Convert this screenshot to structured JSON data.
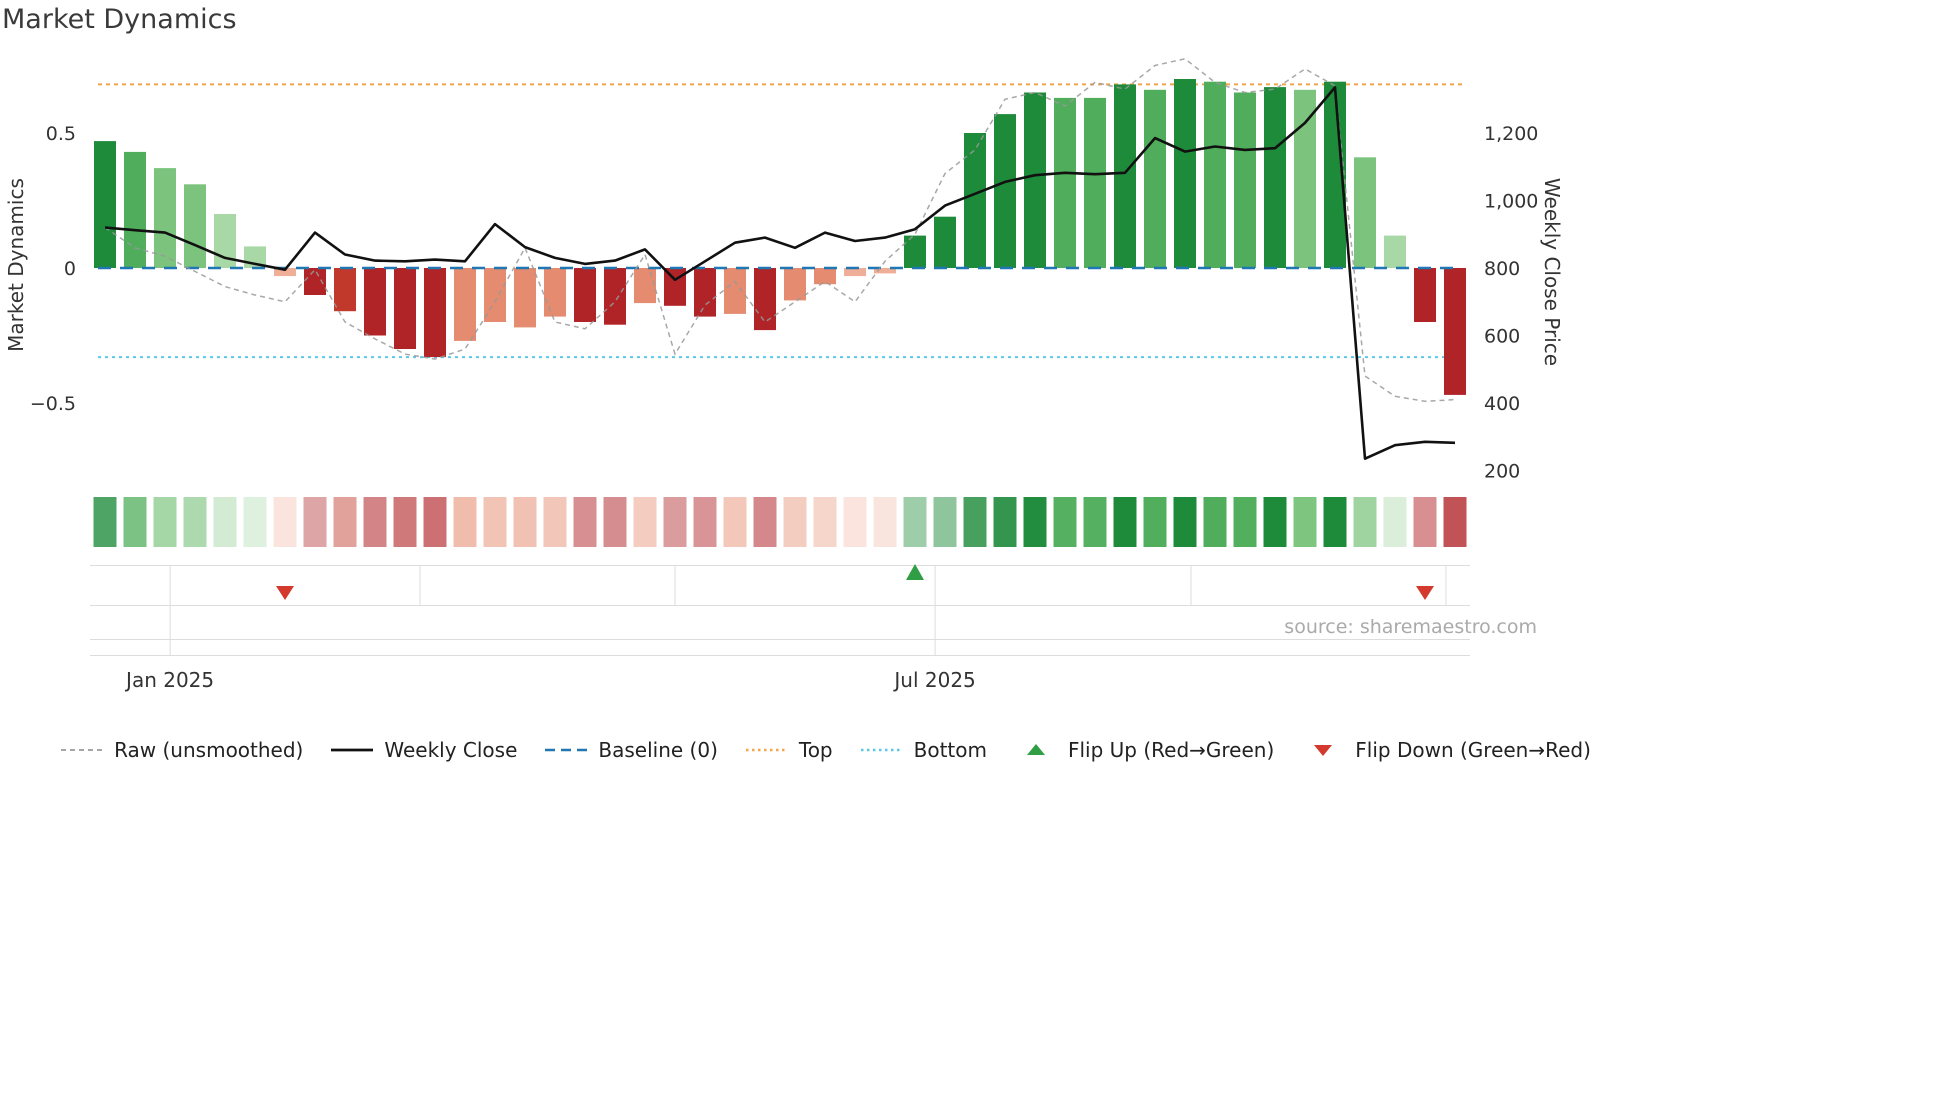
{
  "title": "Market Dynamics",
  "source": "source: sharemaestro.com",
  "axes": {
    "left_label": "Market Dynamics",
    "right_label": "Weekly Close Price",
    "left_ticks": [
      {
        "value": 0.5,
        "label": "0.5"
      },
      {
        "value": 0.0,
        "label": "0"
      },
      {
        "value": -0.5,
        "label": "−0.5"
      }
    ],
    "right_ticks": [
      {
        "value": 1200,
        "label": "1,200"
      },
      {
        "value": 1000,
        "label": "1,000"
      },
      {
        "value": 800,
        "label": "800"
      },
      {
        "value": 600,
        "label": "600"
      },
      {
        "value": 400,
        "label": "400"
      },
      {
        "value": 200,
        "label": "200"
      }
    ],
    "x_ticks": [
      {
        "label": "Jan 2025",
        "index": 2.17
      },
      {
        "label": "Jul 2025",
        "index": 27.67
      }
    ]
  },
  "colors": {
    "tones": {
      "g1": "#1e8b3b",
      "g2": "#4fad5b",
      "g3": "#7cc47e",
      "g4": "#a9d8a7",
      "r1": "#b02428",
      "r2": "#c0392b",
      "s1": "#e58b6f",
      "s2": "#efae97"
    },
    "line_black": "#111111",
    "raw_gray": "#999999",
    "baseline_blue": "#1f77b4",
    "top_orange": "#f2a54a",
    "bottom_cyan": "#5bc8e8",
    "flip_up": "#2f9e44",
    "flip_down": "#d3392d",
    "axis_text": "#333333",
    "band_line": "#dddddd"
  },
  "chart_data": {
    "type": "bar+line",
    "x_unit": "week",
    "title": "Market Dynamics",
    "left_ylabel": "Market Dynamics",
    "right_ylabel": "Weekly Close Price",
    "baseline": 0,
    "top": 0.68,
    "bottom": -0.33,
    "left_ylim": [
      -0.77,
      0.77
    ],
    "right_ylim": [
      184,
      1416
    ],
    "bars": {
      "values": [
        0.47,
        0.43,
        0.37,
        0.31,
        0.2,
        0.08,
        -0.03,
        -0.1,
        -0.16,
        -0.25,
        -0.3,
        -0.33,
        -0.27,
        -0.2,
        -0.22,
        -0.18,
        -0.2,
        -0.21,
        -0.13,
        -0.14,
        -0.18,
        -0.17,
        -0.23,
        -0.12,
        -0.06,
        -0.03,
        -0.02,
        0.12,
        0.19,
        0.5,
        0.57,
        0.65,
        0.63,
        0.63,
        0.68,
        0.66,
        0.7,
        0.69,
        0.65,
        0.67,
        0.66,
        0.69,
        0.41,
        0.12,
        -0.2,
        -0.47
      ],
      "tones": [
        "g1",
        "g2",
        "g3",
        "g3",
        "g4",
        "g4",
        "s2",
        "r1",
        "r2",
        "r1",
        "r1",
        "r1",
        "s1",
        "s1",
        "s1",
        "s1",
        "r1",
        "r1",
        "s1",
        "r1",
        "r1",
        "s1",
        "r1",
        "s1",
        "s1",
        "s2",
        "s2",
        "g1",
        "g1",
        "g1",
        "g1",
        "g1",
        "g2",
        "g2",
        "g1",
        "g2",
        "g1",
        "g2",
        "g2",
        "g1",
        "g3",
        "g1",
        "g3",
        "g4",
        "r1",
        "r1"
      ]
    },
    "weekly_close": [
      920,
      912,
      905,
      868,
      830,
      812,
      795,
      905,
      840,
      822,
      820,
      825,
      820,
      930,
      862,
      830,
      812,
      822,
      855,
      765,
      820,
      875,
      890,
      860,
      905,
      880,
      890,
      915,
      985,
      1020,
      1055,
      1075,
      1082,
      1078,
      1082,
      1185,
      1145,
      1160,
      1150,
      1155,
      1230,
      1335,
      235,
      275,
      285,
      282
    ],
    "raw": [
      920,
      860,
      835,
      790,
      745,
      720,
      700,
      795,
      640,
      590,
      545,
      530,
      560,
      700,
      860,
      640,
      620,
      700,
      840,
      545,
      690,
      760,
      640,
      700,
      760,
      700,
      820,
      900,
      1080,
      1150,
      1300,
      1320,
      1280,
      1350,
      1330,
      1400,
      1420,
      1350,
      1320,
      1330,
      1390,
      1340,
      480,
      420,
      405,
      410
    ],
    "flips": [
      {
        "index": 6,
        "type": "down"
      },
      {
        "index": 27,
        "type": "up"
      },
      {
        "index": 44,
        "type": "down"
      }
    ]
  },
  "legend": [
    {
      "label": "Raw (unsmoothed)",
      "type": "dash-gray"
    },
    {
      "label": "Weekly Close",
      "type": "line-black"
    },
    {
      "label": "Baseline (0)",
      "type": "dash-blue"
    },
    {
      "label": "Top",
      "type": "dot-orange"
    },
    {
      "label": "Bottom",
      "type": "dot-cyan"
    },
    {
      "label": "Flip Up (Red→Green)",
      "type": "tri-up"
    },
    {
      "label": "Flip Down (Green→Red)",
      "type": "tri-down"
    }
  ]
}
